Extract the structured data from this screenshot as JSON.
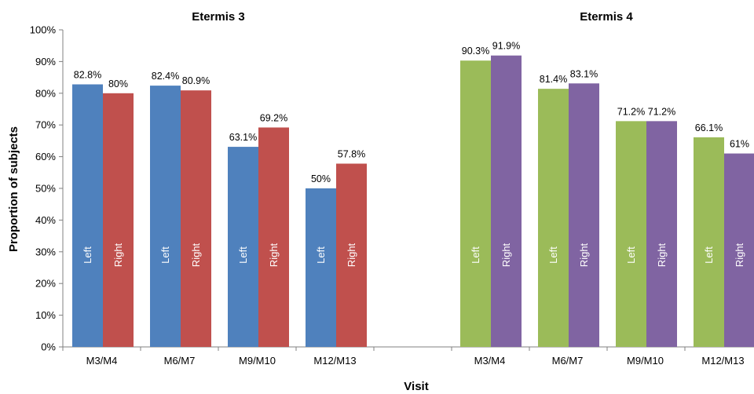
{
  "chart_data": {
    "type": "bar",
    "ylabel": "Proportion of subjects",
    "xlabel": "Visit",
    "ylim": [
      0,
      100
    ],
    "y_ticks": [
      "0%",
      "10%",
      "20%",
      "30%",
      "40%",
      "50%",
      "60%",
      "70%",
      "80%",
      "90%",
      "100%"
    ],
    "grid": false,
    "groups": [
      {
        "title": "Etermis 3",
        "categories": [
          "M3/M4",
          "M6/M7",
          "M9/M10",
          "M12/M13"
        ],
        "series": [
          {
            "name": "Left",
            "color": "#4f81bd",
            "values": [
              82.8,
              82.4,
              63.1,
              50
            ],
            "labels": [
              "82.8%",
              "82.4%",
              "63.1%",
              "50%"
            ]
          },
          {
            "name": "Right",
            "color": "#c0504d",
            "values": [
              80,
              80.9,
              69.2,
              57.8
            ],
            "labels": [
              "80%",
              "80.9%",
              "69.2%",
              "57.8%"
            ]
          }
        ]
      },
      {
        "title": "Etermis 4",
        "categories": [
          "M3/M4",
          "M6/M7",
          "M9/M10",
          "M12/M13"
        ],
        "series": [
          {
            "name": "Left",
            "color": "#9bbb59",
            "values": [
              90.3,
              81.4,
              71.2,
              66.1
            ],
            "labels": [
              "90.3%",
              "81.4%",
              "71.2%",
              "66.1%"
            ]
          },
          {
            "name": "Right",
            "color": "#8064a2",
            "values": [
              91.9,
              83.1,
              71.2,
              61
            ],
            "labels": [
              "91.9%",
              "83.1%",
              "71.2%",
              "61%"
            ]
          }
        ]
      }
    ]
  }
}
